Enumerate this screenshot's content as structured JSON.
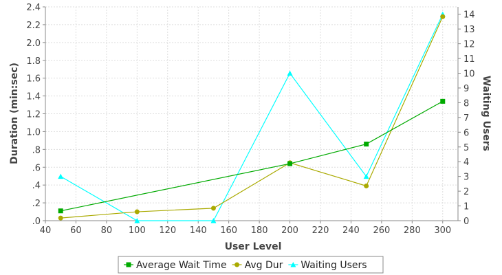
{
  "chart_data": {
    "type": "line",
    "xlabel": "User Level",
    "ylabel": "Duration (min:sec)",
    "y2label": "Waiting Users",
    "xlim": [
      40,
      310
    ],
    "ylim": [
      0,
      2.4
    ],
    "y2lim": [
      0,
      14.5
    ],
    "grid": true,
    "legend_position": "bottom",
    "x_ticks": [
      40,
      60,
      80,
      100,
      120,
      140,
      160,
      180,
      200,
      220,
      240,
      260,
      280,
      300
    ],
    "y_ticks": [
      ".0",
      ".2",
      ".4",
      ".6",
      ".8",
      "1.0",
      "1.2",
      "1.4",
      "1.6",
      "1.8",
      "2.0",
      "2.2",
      "2.4"
    ],
    "y2_ticks": [
      0,
      1,
      2,
      3,
      4,
      5,
      6,
      7,
      8,
      9,
      10,
      11,
      12,
      13,
      14
    ],
    "series": [
      {
        "name": "Average Wait Time",
        "axis": "left",
        "color": "#00aa00",
        "marker": "square",
        "x": [
          50,
          200,
          250,
          300
        ],
        "values": [
          0.11,
          0.64,
          0.86,
          1.34
        ]
      },
      {
        "name": "Avg Dur",
        "axis": "left",
        "color": "#aaaa00",
        "marker": "circle",
        "x": [
          50,
          100,
          150,
          200,
          250,
          300
        ],
        "values": [
          0.03,
          0.1,
          0.14,
          0.65,
          0.39,
          2.29
        ]
      },
      {
        "name": "Waiting Users",
        "axis": "right",
        "color": "#00ffff",
        "marker": "triangle",
        "x": [
          50,
          100,
          150,
          200,
          250,
          300
        ],
        "values": [
          3,
          0,
          0,
          10,
          3,
          14
        ]
      }
    ]
  }
}
